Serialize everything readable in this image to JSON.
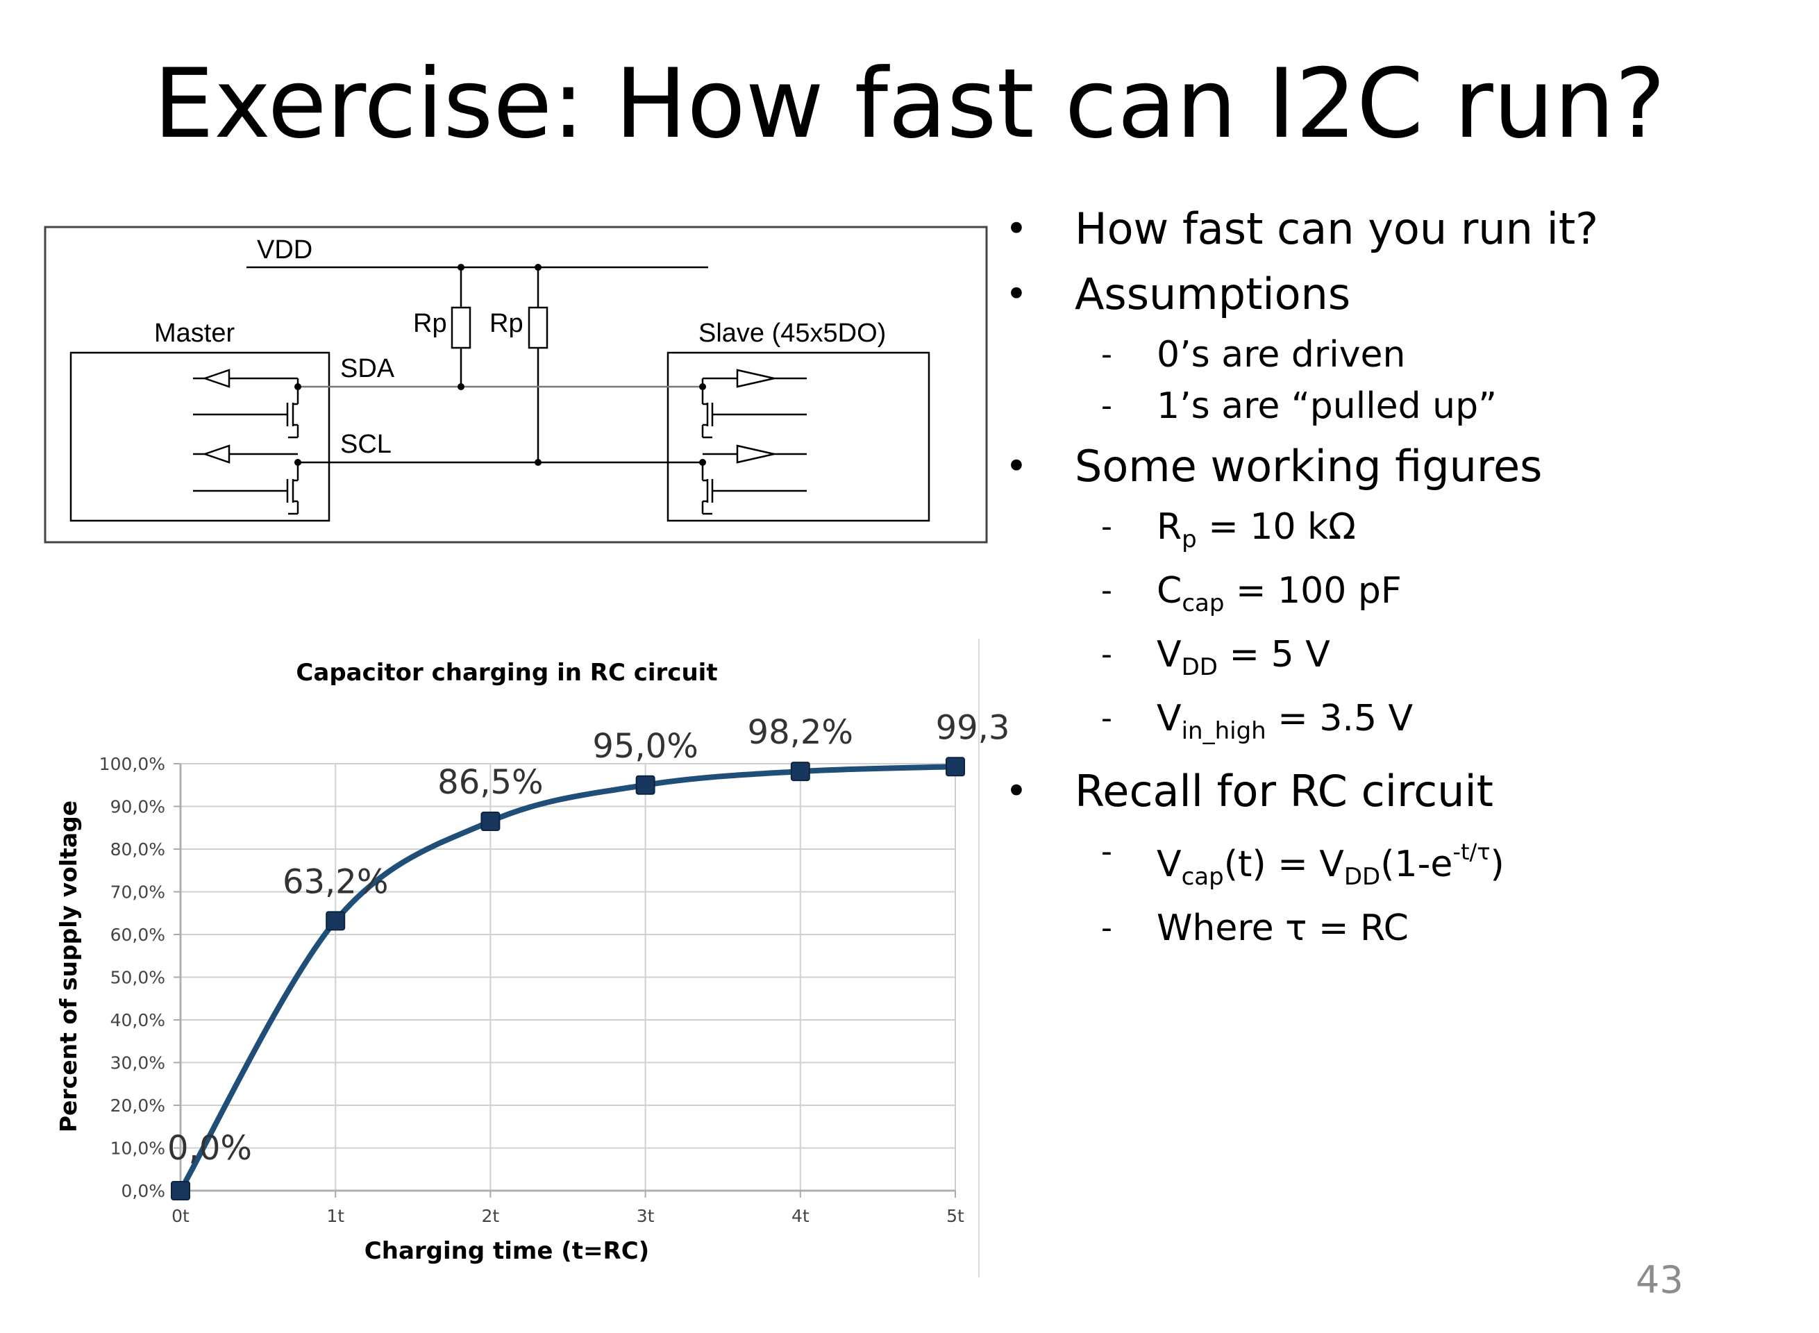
{
  "slide": {
    "title": "Exercise: How fast can I2C run?",
    "page_number": "43"
  },
  "circuit": {
    "vdd_label": "VDD",
    "master_label": "Master",
    "slave_label": "Slave (45x5DO)",
    "rp1_label": "Rp",
    "rp2_label": "Rp",
    "sda_label": "SDA",
    "scl_label": "SCL"
  },
  "bullets": {
    "b1": "How fast can you run it?",
    "b2": "Assumptions",
    "b2_1": "0’s are driven",
    "b2_2": "1’s are “pulled up”",
    "b3": "Some working figures",
    "b3_1_base": "R",
    "b3_1_sub": "p",
    "b3_1_rest": " = 10 kΩ",
    "b3_2_base": "C",
    "b3_2_sub": "cap",
    "b3_2_rest": " = 100 pF",
    "b3_3_base": "V",
    "b3_3_sub": "DD",
    "b3_3_rest": " = 5 V",
    "b3_4_base": "V",
    "b3_4_sub": "in_high",
    "b3_4_rest": " = 3.5 V",
    "b4": "Recall for RC circuit",
    "b4_1_a": "V",
    "b4_1_b": "cap",
    "b4_1_c": "(t) = V",
    "b4_1_d": "DD",
    "b4_1_e": "(1-e",
    "b4_1_f": "-t/τ",
    "b4_1_g": ")",
    "b4_2": "Where τ = RC",
    "bullet_glyph": "•",
    "dash_glyph": "-"
  },
  "chart_data": {
    "type": "line",
    "title": "Capacitor charging in RC circuit",
    "xlabel": "Charging time (t=RC)",
    "ylabel": "Percent of supply voltage",
    "categories": [
      "0t",
      "1t",
      "2t",
      "3t",
      "4t",
      "5t"
    ],
    "values": [
      0.0,
      63.2,
      86.5,
      95.0,
      98.2,
      99.3
    ],
    "data_labels": [
      "0,0%",
      "63,2%",
      "86,5%",
      "95,0%",
      "98,2%",
      "99,3"
    ],
    "ylim": [
      0,
      100
    ],
    "yticks": [
      "0,0%",
      "10,0%",
      "20,0%",
      "30,0%",
      "40,0%",
      "50,0%",
      "60,0%",
      "70,0%",
      "80,0%",
      "90,0%",
      "100,0%"
    ],
    "grid": true,
    "line_color": "#1f4e79",
    "marker_color": "#17375e"
  }
}
